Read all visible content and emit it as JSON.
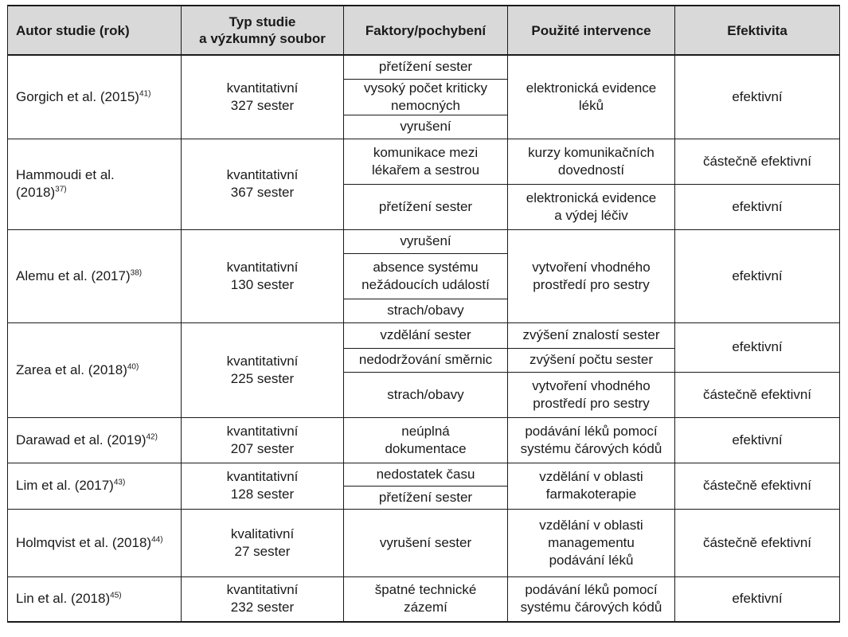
{
  "header": {
    "author": "Autor studie (rok)",
    "type": "Typ studie\na výzkumný soubor",
    "factors": "Faktory/pochybení",
    "interventions": "Použité intervence",
    "effectiveness": "Efektivita"
  },
  "rows": [
    {
      "author": "Gorgich et al. (2015)",
      "ref": "41)",
      "type": "kvantitativní\n327 sester",
      "factors": [
        "přetížení sester",
        "vysoký počet kriticky\nnemocných",
        "vyrušení"
      ],
      "intervention": "elektronická evidence\nléků",
      "effect": "efektivní"
    },
    {
      "author": "Hammoudi et al.\n(2018)",
      "ref": "37)",
      "type": "kvantitativní\n367 sester",
      "factors": [
        "komunikace mezi\nlékařem a sestrou",
        "přetížení sester"
      ],
      "interventions": [
        "kurzy komunikačních\ndovedností",
        "elektronická evidence\na výdej léčiv"
      ],
      "effects": [
        "částečně efektivní",
        "efektivní"
      ]
    },
    {
      "author": "Alemu et al. (2017)",
      "ref": "38)",
      "type": "kvantitativní\n130 sester",
      "factors": [
        "vyrušení",
        "absence systému\nnežádoucích událostí",
        "strach/obavy"
      ],
      "intervention": "vytvoření vhodného\nprostředí pro sestry",
      "effect": "efektivní"
    },
    {
      "author": "Zarea et al. (2018)",
      "ref": "40)",
      "type": "kvantitativní\n225 sester",
      "factors": [
        "vzdělání sester",
        "nedodržování směrnic",
        "strach/obavy"
      ],
      "interventions": [
        "zvýšení znalostí sester",
        "zvýšení počtu sester",
        "vytvoření vhodného\nprostředí pro sestry"
      ],
      "effects": [
        "efektivní",
        "částečně efektivní"
      ]
    },
    {
      "author": "Darawad et al. (2019)",
      "ref": "42)",
      "type": "kvantitativní\n207 sester",
      "factor": "neúplná\ndokumentace",
      "intervention": "podávání léků pomocí\nsystému čárových kódů",
      "effect": "efektivní"
    },
    {
      "author": "Lim et al. (2017)",
      "ref": "43)",
      "type": "kvantitativní\n128 sester",
      "factors": [
        "nedostatek času",
        "přetížení sester"
      ],
      "intervention": "vzdělání v oblasti\nfarmakoterapie",
      "effect": "částečně efektivní"
    },
    {
      "author": "Holmqvist et al. (2018)",
      "ref": "44)",
      "type": "kvalitativní\n27 sester",
      "factor": "vyrušení sester",
      "intervention": "vzdělání v oblasti\nmanagementu\npodávání léků",
      "effect": "částečně efektivní"
    },
    {
      "author": "Lin et al. (2018)",
      "ref": "45)",
      "type": "kvantitativní\n232 sester",
      "factor": "špatné technické\nzázemí",
      "intervention": "podávání léků pomocí\nsystému čárových kódů",
      "effect": "efektivní"
    }
  ]
}
